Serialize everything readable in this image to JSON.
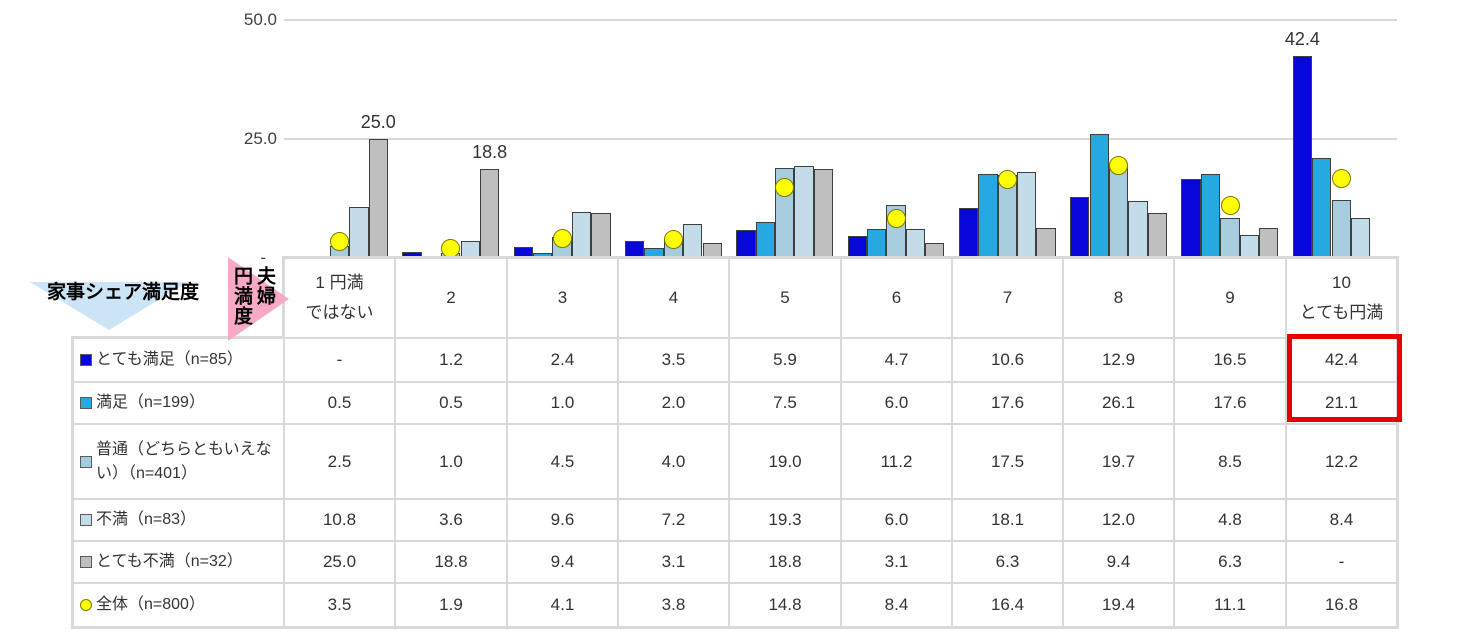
{
  "decor": {
    "row_axis_title": "家事シェア満足度",
    "col_axis_title_lines": [
      "夫婦",
      "円満度"
    ]
  },
  "chart_data": {
    "type": "bar",
    "orientation": "vertical",
    "categories": [
      "1 円満ではない",
      "2",
      "3",
      "4",
      "5",
      "6",
      "7",
      "8",
      "9",
      "10 とても円満"
    ],
    "series": [
      {
        "name": "とても満足（n=85）",
        "color": "#0707DC",
        "shape": "square",
        "render": "bar",
        "values": [
          null,
          1.2,
          2.4,
          3.5,
          5.9,
          4.7,
          10.6,
          12.9,
          16.5,
          42.4
        ]
      },
      {
        "name": "満足（n=199）",
        "color": "#25A9E0",
        "shape": "square",
        "render": "bar",
        "values": [
          0.5,
          0.5,
          1.0,
          2.0,
          7.5,
          6.0,
          17.6,
          26.1,
          17.6,
          21.1
        ]
      },
      {
        "name": "普通（どちらともいえない）（n=401）",
        "color": "#A6CCDD",
        "shape": "square",
        "render": "bar",
        "values": [
          2.5,
          1.0,
          4.5,
          4.0,
          19.0,
          11.2,
          17.5,
          19.7,
          8.5,
          12.2
        ]
      },
      {
        "name": "不満（n=83）",
        "color": "#C2DCE9",
        "shape": "square",
        "render": "bar",
        "values": [
          10.8,
          3.6,
          9.6,
          7.2,
          19.3,
          6.0,
          18.1,
          12.0,
          4.8,
          8.4
        ]
      },
      {
        "name": "とても不満（n=32）",
        "color": "#BFBFBF",
        "shape": "square",
        "render": "bar",
        "values": [
          25.0,
          18.8,
          9.4,
          3.1,
          18.8,
          3.1,
          6.3,
          9.4,
          6.3,
          null
        ]
      },
      {
        "name": "全体（n=800）",
        "color": "#FFFF00",
        "shape": "circle",
        "render": "marker",
        "values": [
          3.5,
          1.9,
          4.1,
          3.8,
          14.8,
          8.4,
          16.4,
          19.4,
          11.1,
          16.8
        ]
      }
    ],
    "ylim": [
      0,
      50
    ],
    "yticks": [
      {
        "value": 50,
        "label": "50.0"
      },
      {
        "value": 25,
        "label": "25.0"
      },
      {
        "value": 0,
        "label": "-"
      }
    ],
    "grid": true,
    "legend_position": "table-left",
    "annotations": [
      {
        "category_index": 0,
        "series_index": 4,
        "label": "25.0"
      },
      {
        "category_index": 1,
        "series_index": 4,
        "label": "18.8"
      },
      {
        "category_index": 9,
        "series_index": 0,
        "label": "42.4"
      }
    ]
  },
  "table": {
    "header_lines": [
      [
        "1 円満",
        "ではない"
      ],
      [
        "2"
      ],
      [
        "3"
      ],
      [
        "4"
      ],
      [
        "5"
      ],
      [
        "6"
      ],
      [
        "7"
      ],
      [
        "8"
      ],
      [
        "9"
      ],
      [
        "10",
        "とても円満"
      ]
    ],
    "missing_placeholder": "-"
  },
  "highlight": {
    "color": "#E60000",
    "column_index": 9,
    "row_indexes": [
      0,
      1
    ],
    "highlighted_values": [
      "42.4",
      "21.1"
    ]
  }
}
